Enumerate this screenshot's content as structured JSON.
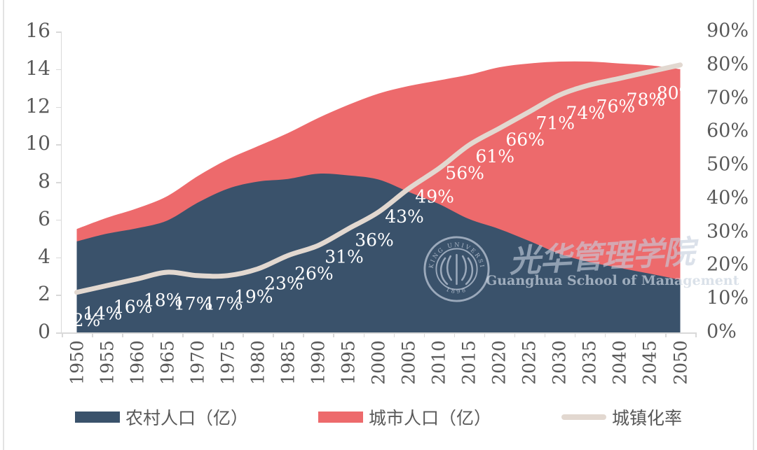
{
  "chart_data": {
    "type": "area",
    "stacked": true,
    "grid": "off",
    "legend_position": "bottom",
    "categories": [
      "1950",
      "1955",
      "1960",
      "1965",
      "1970",
      "1975",
      "1980",
      "1985",
      "1990",
      "1995",
      "2000",
      "2005",
      "2010",
      "2015",
      "2020",
      "2025",
      "2030",
      "2035",
      "2040",
      "2045",
      "2050"
    ],
    "series": [
      {
        "name": "农村人口（亿）",
        "kind": "area",
        "axis": "left",
        "color": "#3A526B",
        "values": [
          4.84,
          5.25,
          5.54,
          5.95,
          6.89,
          7.64,
          8.02,
          8.16,
          8.44,
          8.35,
          8.13,
          7.47,
          6.83,
          6.03,
          5.5,
          4.86,
          4.18,
          3.74,
          3.43,
          3.12,
          2.8
        ]
      },
      {
        "name": "城市人口（亿）",
        "kind": "area",
        "axis": "left",
        "color": "#ED6A6C",
        "values": [
          0.66,
          0.85,
          1.06,
          1.3,
          1.41,
          1.56,
          1.88,
          2.44,
          2.96,
          3.75,
          4.57,
          5.63,
          6.57,
          7.67,
          8.6,
          9.44,
          10.22,
          10.66,
          10.87,
          11.08,
          11.2
        ]
      },
      {
        "name": "城镇化率",
        "kind": "line",
        "axis": "right",
        "color": "#E2D8D0",
        "values": [
          12,
          14,
          16,
          18,
          17,
          17,
          19,
          23,
          26,
          31,
          36,
          43,
          49,
          56,
          61,
          66,
          71,
          74,
          76,
          78,
          80
        ],
        "point_labels": [
          "12%",
          "14%",
          "16%",
          "18%",
          "17%",
          "17%",
          "19%",
          "23%",
          "26%",
          "31%",
          "36%",
          "43%",
          "49%",
          "56%",
          "61%",
          "66%",
          "71%",
          "74%",
          "76%",
          "78%",
          "80%"
        ]
      }
    ],
    "left_axis": {
      "min": 0,
      "max": 16,
      "ticks": [
        "0",
        "2",
        "4",
        "6",
        "8",
        "10",
        "12",
        "14",
        "16"
      ]
    },
    "right_axis": {
      "min": 0,
      "max": 90,
      "ticks": [
        "0%",
        "10%",
        "20%",
        "30%",
        "40%",
        "50%",
        "60%",
        "70%",
        "80%",
        "90%"
      ]
    },
    "point_label_color": "#ffffff"
  },
  "legend": {
    "items": [
      {
        "label": "农村人口（亿）",
        "color": "#3A526B",
        "shape": "rect"
      },
      {
        "label": "城市人口（亿）",
        "color": "#ED6A6C",
        "shape": "rect"
      },
      {
        "label": "城镇化率",
        "color": "#E2D8D0",
        "shape": "line"
      }
    ]
  },
  "watermark": {
    "seal_ring_text": "PEKING UNIVERSITY",
    "seal_year": "1898",
    "title_cn": "光华管理学院",
    "subtitle_en": "Guanghua School of Management"
  }
}
